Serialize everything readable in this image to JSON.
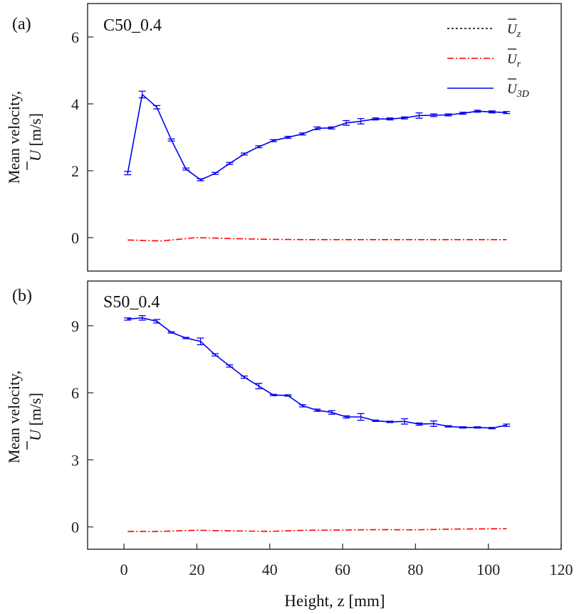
{
  "chart_data": [
    {
      "type": "line",
      "panel_label": "(a)",
      "case_label": "C50_0.4",
      "ylabel_line1": "Mean velocity,",
      "ylabel_symbol": "U",
      "ylabel_unit": "[m/s]",
      "xlim": [
        -10,
        120
      ],
      "ylim": [
        -1,
        7
      ],
      "yticks": [
        0,
        2,
        4,
        6
      ],
      "legend": [
        {
          "symbol": "U",
          "sub": "z",
          "color": "#000000",
          "style": "dotted"
        },
        {
          "symbol": "U",
          "sub": "r",
          "color": "#ff0000",
          "style": "dashdot"
        },
        {
          "symbol": "U",
          "sub": "3D",
          "color": "#0000ee",
          "style": "solid"
        }
      ],
      "series": [
        {
          "name": "U_3D",
          "color": "#0000ee",
          "style": "solid",
          "x": [
            1,
            5,
            9,
            13,
            17,
            21,
            25,
            29,
            33,
            37,
            41,
            45,
            49,
            53,
            57,
            61,
            65,
            69,
            73,
            77,
            81,
            85,
            89,
            93,
            97,
            101,
            105
          ],
          "y": [
            1.93,
            4.28,
            3.9,
            2.92,
            2.05,
            1.73,
            1.92,
            2.22,
            2.5,
            2.72,
            2.9,
            3.0,
            3.1,
            3.27,
            3.28,
            3.43,
            3.48,
            3.55,
            3.55,
            3.58,
            3.65,
            3.66,
            3.67,
            3.72,
            3.78,
            3.76,
            3.74
          ],
          "err": [
            0.05,
            0.1,
            0.05,
            0.03,
            0.03,
            0.03,
            0.03,
            0.03,
            0.03,
            0.03,
            0.03,
            0.03,
            0.03,
            0.04,
            0.03,
            0.07,
            0.08,
            0.03,
            0.03,
            0.03,
            0.08,
            0.04,
            0.03,
            0.03,
            0.03,
            0.03,
            0.03
          ]
        },
        {
          "name": "U_r",
          "color": "#ff0000",
          "style": "dashdot",
          "x": [
            1,
            10,
            20,
            30,
            40,
            50,
            60,
            70,
            80,
            90,
            105
          ],
          "y": [
            -0.07,
            -0.1,
            0.0,
            -0.03,
            -0.05,
            -0.06,
            -0.06,
            -0.06,
            -0.06,
            -0.06,
            -0.06
          ]
        }
      ]
    },
    {
      "type": "line",
      "panel_label": "(b)",
      "case_label": "S50_0.4",
      "ylabel_line1": "Mean velocity,",
      "ylabel_symbol": "U",
      "ylabel_unit": "[m/s]",
      "xlim": [
        -10,
        120
      ],
      "ylim": [
        -1,
        11
      ],
      "yticks": [
        0,
        3,
        6,
        9
      ],
      "xlabel": "Height, z [mm]",
      "xticks": [
        0,
        20,
        40,
        60,
        80,
        100,
        120
      ],
      "series": [
        {
          "name": "U_3D",
          "color": "#0000ee",
          "style": "solid",
          "x": [
            1,
            5,
            9,
            13,
            17,
            21,
            25,
            29,
            33,
            37,
            41,
            45,
            49,
            53,
            57,
            61,
            65,
            69,
            73,
            77,
            81,
            85,
            89,
            93,
            97,
            101,
            105
          ],
          "y": [
            9.3,
            9.35,
            9.2,
            8.7,
            8.45,
            8.3,
            7.7,
            7.2,
            6.7,
            6.3,
            5.9,
            5.88,
            5.42,
            5.22,
            5.12,
            4.92,
            4.92,
            4.75,
            4.7,
            4.72,
            4.6,
            4.62,
            4.5,
            4.45,
            4.45,
            4.42,
            4.55
          ],
          "err": [
            0.05,
            0.1,
            0.08,
            0.03,
            0.03,
            0.15,
            0.05,
            0.05,
            0.05,
            0.12,
            0.03,
            0.03,
            0.05,
            0.05,
            0.08,
            0.05,
            0.15,
            0.03,
            0.03,
            0.12,
            0.05,
            0.12,
            0.03,
            0.03,
            0.03,
            0.03,
            0.05
          ]
        },
        {
          "name": "U_r",
          "color": "#ff0000",
          "style": "dashdot",
          "x": [
            1,
            10,
            20,
            30,
            40,
            50,
            60,
            70,
            80,
            90,
            105
          ],
          "y": [
            -0.2,
            -0.2,
            -0.15,
            -0.18,
            -0.2,
            -0.15,
            -0.14,
            -0.12,
            -0.13,
            -0.1,
            -0.08
          ]
        }
      ]
    }
  ]
}
